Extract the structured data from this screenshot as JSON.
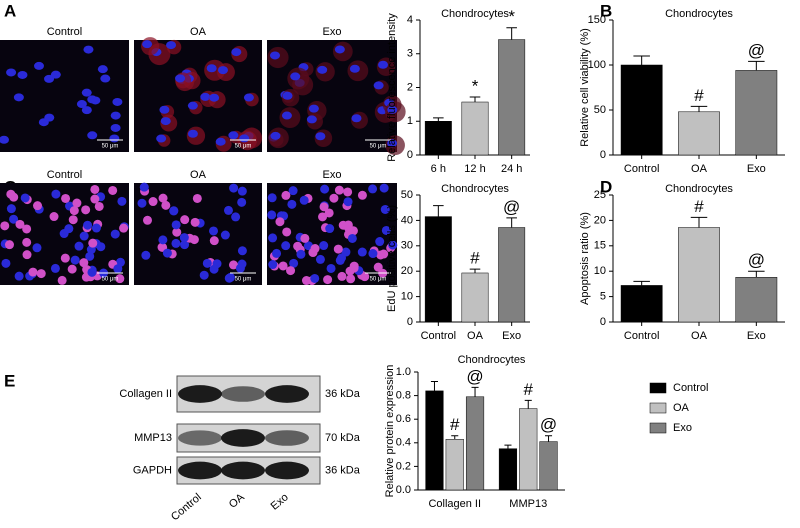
{
  "figure": {
    "panel_labels": [
      "A",
      "B",
      "C",
      "D",
      "E"
    ],
    "image_rows": [
      {
        "labels": [
          "Control",
          "OA",
          "Exo"
        ],
        "scale_bar": "50 μm"
      },
      {
        "labels": [
          "Control",
          "OA",
          "Exo"
        ],
        "scale_bar": "50 μm"
      }
    ],
    "blot": {
      "rows": [
        {
          "protein": "Collagen II",
          "size": "36 kDa"
        },
        {
          "protein": "MMP13",
          "size": "70 kDa"
        },
        {
          "protein": "GAPDH",
          "size": "36 kDa"
        }
      ],
      "lanes": [
        "Control",
        "OA",
        "Exo"
      ]
    }
  },
  "chart_data": [
    {
      "type": "bar",
      "title": "Chondrocytes",
      "y_label": "Relative fluorescence intensity",
      "categories": [
        "6 h",
        "12 h",
        "24 h"
      ],
      "values": [
        1.0,
        1.57,
        3.42
      ],
      "errors": [
        0.1,
        0.15,
        0.35
      ],
      "annotations": [
        null,
        "*",
        "*"
      ],
      "colors": [
        "#000000",
        "#c0c0c0",
        "#808080"
      ],
      "ylim": [
        0,
        4
      ],
      "yticks": [
        0,
        1,
        2,
        3,
        4
      ]
    },
    {
      "type": "bar",
      "title": "Chondrocytes",
      "y_label": "Relative cell viability (%)",
      "categories": [
        "Control",
        "OA",
        "Exo"
      ],
      "values": [
        100,
        48,
        94
      ],
      "errors": [
        10,
        6,
        10
      ],
      "annotations": [
        null,
        "#",
        "@"
      ],
      "colors": [
        "#000000",
        "#c0c0c0",
        "#808080"
      ],
      "ylim": [
        0,
        150
      ],
      "yticks": [
        0,
        50,
        100,
        150
      ]
    },
    {
      "type": "bar",
      "title": "Chondrocytes",
      "y_label": "EdU positive cells (%)",
      "categories": [
        "Control",
        "OA",
        "Exo"
      ],
      "values": [
        41.5,
        19.3,
        37.2
      ],
      "errors": [
        4.3,
        1.5,
        3.8
      ],
      "annotations": [
        null,
        "#",
        "@"
      ],
      "colors": [
        "#000000",
        "#c0c0c0",
        "#808080"
      ],
      "ylim": [
        0,
        50
      ],
      "yticks": [
        0,
        10,
        20,
        30,
        40,
        50
      ]
    },
    {
      "type": "bar",
      "title": "Chondrocytes",
      "y_label": "Apoptosis ratio (%)",
      "categories": [
        "Control",
        "OA",
        "Exo"
      ],
      "values": [
        7.2,
        18.6,
        8.8
      ],
      "errors": [
        0.8,
        2.0,
        1.2
      ],
      "annotations": [
        null,
        "#",
        "@"
      ],
      "colors": [
        "#000000",
        "#c0c0c0",
        "#808080"
      ],
      "ylim": [
        0,
        25
      ],
      "yticks": [
        0,
        5,
        10,
        15,
        20,
        25
      ]
    },
    {
      "type": "grouped_bar",
      "title": "Chondrocytes",
      "y_label": "Relative protein expression",
      "categories": [
        "Collagen II",
        "MMP13"
      ],
      "series": [
        {
          "name": "Control",
          "color": "#000000",
          "values": [
            0.84,
            0.35
          ],
          "errors": [
            0.08,
            0.03
          ],
          "annotations": [
            null,
            null
          ]
        },
        {
          "name": "OA",
          "color": "#c0c0c0",
          "values": [
            0.43,
            0.69
          ],
          "errors": [
            0.03,
            0.07
          ],
          "annotations": [
            "#",
            "#"
          ]
        },
        {
          "name": "Exo",
          "color": "#808080",
          "values": [
            0.79,
            0.41
          ],
          "errors": [
            0.08,
            0.05
          ],
          "annotations": [
            "@",
            "@"
          ]
        }
      ],
      "ylim": [
        0,
        1
      ],
      "yticks": [
        {
          "value": 0,
          "label": "0.0"
        },
        0.2,
        0.4,
        0.6,
        0.8,
        {
          "value": 1,
          "label": "1.0"
        }
      ],
      "legend": "right"
    }
  ]
}
